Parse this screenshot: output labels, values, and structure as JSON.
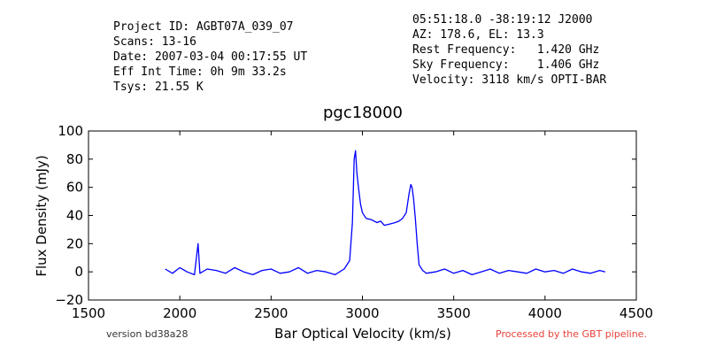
{
  "header": {
    "left": [
      "Project ID: AGBT07A_039_07",
      "Scans: 13-16",
      "Date: 2007-03-04 00:17:55 UT",
      "Eff Int Time: 0h 9m 33.2s",
      "Tsys: 21.55 K"
    ],
    "right": [
      "05:51:18.0 -38:19:12 J2000",
      "AZ: 178.6, EL: 13.3",
      "Rest Frequency:   1.420 GHz",
      "Sky Frequency:    1.406 GHz",
      "Velocity: 3118 km/s OPTI-BAR"
    ]
  },
  "footer": {
    "version": "version bd38a28",
    "processed": "Processed by the GBT pipeline.",
    "processed_color": "#e8413a"
  },
  "chart_data": {
    "type": "line",
    "title": "pgc18000",
    "xlabel": "Bar Optical Velocity (km/s)",
    "ylabel": "Flux Density (mJy)",
    "xlim": [
      1500,
      4500
    ],
    "ylim": [
      -20,
      100
    ],
    "xticks": [
      1500,
      2000,
      2500,
      3000,
      3500,
      4000,
      4500
    ],
    "yticks": [
      -20,
      0,
      20,
      40,
      60,
      80,
      100
    ],
    "grid": false,
    "line_color": "#0000ff",
    "series": [
      {
        "x": [
          1920,
          1960,
          2000,
          2040,
          2080,
          2100,
          2110,
          2150,
          2200,
          2250,
          2300,
          2350,
          2400,
          2450,
          2500,
          2550,
          2600,
          2650,
          2700,
          2750,
          2800,
          2850,
          2900,
          2930,
          2945,
          2955,
          2962,
          2970,
          2980,
          2990,
          3000,
          3020,
          3050,
          3080,
          3100,
          3120,
          3150,
          3180,
          3200,
          3220,
          3240,
          3255,
          3265,
          3272,
          3280,
          3290,
          3300,
          3310,
          3330,
          3350,
          3400,
          3450,
          3500,
          3550,
          3600,
          3650,
          3700,
          3750,
          3800,
          3850,
          3900,
          3950,
          4000,
          4050,
          4100,
          4150,
          4200,
          4250,
          4300,
          4330
        ],
        "y": [
          2,
          -1,
          3,
          0,
          -2,
          20,
          -1,
          2,
          1,
          -1,
          3,
          0,
          -2,
          1,
          2,
          -1,
          0,
          3,
          -1,
          1,
          0,
          -2,
          2,
          8,
          35,
          80,
          86,
          70,
          58,
          48,
          42,
          38,
          37,
          35,
          36,
          33,
          34,
          35,
          36,
          38,
          42,
          55,
          62,
          60,
          52,
          38,
          20,
          5,
          1,
          -1,
          0,
          2,
          -1,
          1,
          -2,
          0,
          2,
          -1,
          1,
          0,
          -1,
          2,
          0,
          1,
          -1,
          2,
          0,
          -1,
          1,
          0
        ]
      }
    ]
  }
}
